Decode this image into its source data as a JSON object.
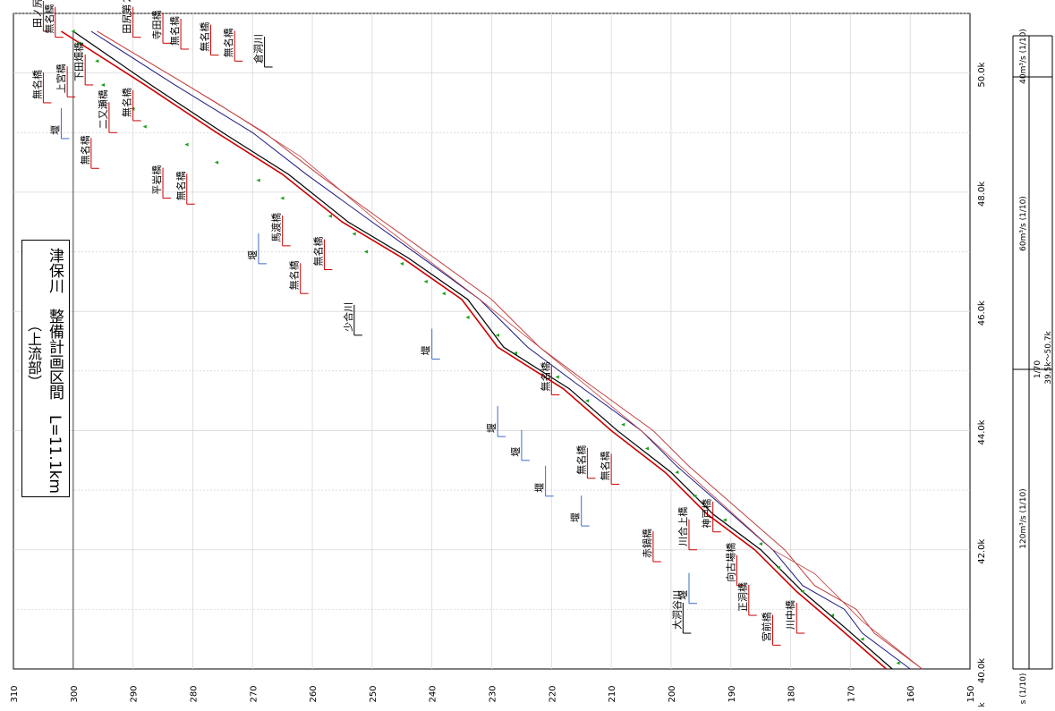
{
  "title_box": {
    "line1": "津保川　整備計画区間　L=11.1km",
    "line2": "（上流部）"
  },
  "axes": {
    "elevation_ticks": [
      "310",
      "300",
      "290",
      "280",
      "270",
      "260",
      "250",
      "240",
      "230",
      "220",
      "210",
      "200",
      "190",
      "180",
      "170",
      "160",
      "150"
    ],
    "distance_ticks": [
      "40.0k",
      "42.0k",
      "44.0k",
      "46.0k",
      "48.0k",
      "50.0k"
    ],
    "distance_unit_label": "k"
  },
  "flow_table": {
    "q1": "40m³/s (1/10)",
    "q2": "60m³/s (1/10)",
    "q3": "120m³/s (1/10)",
    "q4": "s (1/10)",
    "slope": "1/70",
    "range": "39.5k～50.7k"
  },
  "colors": {
    "plan_line": "#cc0000",
    "design_line": "#000000",
    "bed_line": "#1a1a80",
    "bank_line": "#c04040",
    "ground_points": "#1aa01a",
    "bridge_marker": "#cc0000",
    "weir_marker": "#3a6fc0",
    "tributary_marker": "#000000",
    "grid": "#d8d8d8"
  },
  "chart_data": {
    "type": "line",
    "x_axis": "distance (k)",
    "y_axis": "elevation",
    "xlim": [
      40.0,
      51.0
    ],
    "ylim": [
      150,
      310
    ],
    "grid": true,
    "series": [
      {
        "x": [
          40.0,
          40.7,
          41.3,
          42.0,
          42.6,
          43.3,
          44.0,
          44.7,
          45.4,
          46.2,
          46.9,
          47.5,
          48.3,
          49.0,
          49.8,
          50.7
        ],
        "y": [
          164,
          172,
          179,
          186,
          194,
          201,
          210,
          218,
          229,
          235,
          245,
          255,
          265,
          276,
          288,
          302
        ]
      },
      {
        "x": [
          40.0,
          40.7,
          41.3,
          42.0,
          42.6,
          43.3,
          44.0,
          44.7,
          45.4,
          46.2,
          46.9,
          47.5,
          48.3,
          49.0,
          49.8,
          50.7
        ],
        "y": [
          163,
          171,
          178,
          185,
          193,
          200,
          209,
          217,
          228,
          234,
          244,
          254,
          264,
          275,
          287,
          300
        ]
      },
      {
        "x": [
          40.0,
          40.6,
          41.0,
          41.4,
          42.0,
          42.7,
          43.4,
          44.0,
          44.8,
          45.4,
          46.2,
          47.0,
          47.5,
          48.3,
          49.0,
          49.8,
          50.7
        ],
        "y": [
          160,
          168,
          171,
          178,
          183,
          191,
          199,
          205,
          216,
          224,
          232,
          243,
          250,
          261,
          270,
          283,
          297
        ]
      },
      {
        "x": [
          40.0,
          40.6,
          41.0,
          41.4,
          42.0,
          42.7,
          43.4,
          44.0,
          44.8,
          45.4,
          46.2,
          47.0,
          47.5,
          48.3,
          49.0,
          49.8,
          50.7
        ],
        "y": [
          158,
          166,
          169,
          176,
          181,
          189,
          197,
          203,
          214,
          222,
          230,
          241,
          248,
          259,
          268,
          281,
          296
        ]
      },
      {
        "x": [
          40.0,
          40.8,
          41.6,
          42.0,
          43.0,
          44.0,
          45.4,
          46.2,
          47.5,
          48.6,
          49.5,
          50.7
        ],
        "y": [
          158,
          168,
          176,
          183,
          194,
          205,
          222,
          232,
          249,
          262,
          276,
          296
        ]
      }
    ],
    "ground_points": [
      {
        "x": 40.1,
        "y": 162
      },
      {
        "x": 40.5,
        "y": 168
      },
      {
        "x": 40.9,
        "y": 173
      },
      {
        "x": 41.3,
        "y": 178
      },
      {
        "x": 41.7,
        "y": 182
      },
      {
        "x": 42.1,
        "y": 185
      },
      {
        "x": 42.5,
        "y": 191
      },
      {
        "x": 42.9,
        "y": 196
      },
      {
        "x": 43.3,
        "y": 199
      },
      {
        "x": 43.7,
        "y": 204
      },
      {
        "x": 44.1,
        "y": 208
      },
      {
        "x": 44.5,
        "y": 214
      },
      {
        "x": 44.9,
        "y": 219
      },
      {
        "x": 45.3,
        "y": 226
      },
      {
        "x": 45.6,
        "y": 229
      },
      {
        "x": 45.9,
        "y": 234
      },
      {
        "x": 46.3,
        "y": 238
      },
      {
        "x": 46.5,
        "y": 241
      },
      {
        "x": 46.8,
        "y": 245
      },
      {
        "x": 47.0,
        "y": 251
      },
      {
        "x": 47.3,
        "y": 253
      },
      {
        "x": 47.6,
        "y": 257
      },
      {
        "x": 47.9,
        "y": 265
      },
      {
        "x": 48.2,
        "y": 269
      },
      {
        "x": 48.5,
        "y": 276
      },
      {
        "x": 48.8,
        "y": 281
      },
      {
        "x": 49.1,
        "y": 288
      },
      {
        "x": 49.4,
        "y": 290
      },
      {
        "x": 49.8,
        "y": 295
      },
      {
        "x": 50.2,
        "y": 296
      },
      {
        "x": 50.5,
        "y": 299
      },
      {
        "x": 50.7,
        "y": 300
      }
    ],
    "annotations": [
      {
        "label": "田ノ尻橋",
        "kind": "bridge",
        "x": 50.7,
        "y": 305
      },
      {
        "label": "無名橋",
        "kind": "bridge",
        "x": 50.6,
        "y": 303
      },
      {
        "label": "田尻第２橋",
        "kind": "bridge",
        "x": 50.6,
        "y": 290
      },
      {
        "label": "寺田橋",
        "kind": "bridge",
        "x": 50.5,
        "y": 285
      },
      {
        "label": "無名橋",
        "kind": "bridge",
        "x": 50.4,
        "y": 282
      },
      {
        "label": "無名橋",
        "kind": "bridge",
        "x": 50.3,
        "y": 277
      },
      {
        "label": "無名橋",
        "kind": "bridge",
        "x": 50.2,
        "y": 273
      },
      {
        "label": "倉洞川",
        "kind": "tributary",
        "x": 50.1,
        "y": 268
      },
      {
        "label": "下田畑橋",
        "kind": "bridge",
        "x": 49.8,
        "y": 298
      },
      {
        "label": "上宮橋",
        "kind": "bridge",
        "x": 49.6,
        "y": 301
      },
      {
        "label": "無名橋",
        "kind": "bridge",
        "x": 49.5,
        "y": 305
      },
      {
        "label": "無名橋",
        "kind": "bridge",
        "x": 49.2,
        "y": 290
      },
      {
        "label": "二又瀬橋",
        "kind": "bridge",
        "x": 49.0,
        "y": 294
      },
      {
        "label": "堰",
        "kind": "weir",
        "x": 48.9,
        "y": 302
      },
      {
        "label": "無名橋",
        "kind": "bridge",
        "x": 48.4,
        "y": 297
      },
      {
        "label": "平岩橋",
        "kind": "bridge",
        "x": 47.9,
        "y": 285
      },
      {
        "label": "無名橋",
        "kind": "bridge",
        "x": 47.8,
        "y": 281
      },
      {
        "label": "馬渡橋",
        "kind": "bridge",
        "x": 47.1,
        "y": 265
      },
      {
        "label": "堰",
        "kind": "weir",
        "x": 46.8,
        "y": 269
      },
      {
        "label": "無名橋",
        "kind": "bridge",
        "x": 46.7,
        "y": 258
      },
      {
        "label": "無名橋",
        "kind": "bridge",
        "x": 46.3,
        "y": 262
      },
      {
        "label": "少合川",
        "kind": "tributary",
        "x": 45.6,
        "y": 253
      },
      {
        "label": "堰",
        "kind": "weir",
        "x": 45.2,
        "y": 240
      },
      {
        "label": "無名橋",
        "kind": "bridge",
        "x": 44.6,
        "y": 220
      },
      {
        "label": "堰",
        "kind": "weir",
        "x": 43.9,
        "y": 229
      },
      {
        "label": "堰",
        "kind": "weir",
        "x": 43.5,
        "y": 225
      },
      {
        "label": "無名橋",
        "kind": "bridge",
        "x": 43.2,
        "y": 214
      },
      {
        "label": "無名橋",
        "kind": "bridge",
        "x": 43.1,
        "y": 210
      },
      {
        "label": "堰",
        "kind": "weir",
        "x": 42.9,
        "y": 221
      },
      {
        "label": "堰",
        "kind": "weir",
        "x": 42.4,
        "y": 215
      },
      {
        "label": "神戸橋",
        "kind": "bridge",
        "x": 42.3,
        "y": 193
      },
      {
        "label": "川合上橋",
        "kind": "bridge",
        "x": 42.0,
        "y": 197
      },
      {
        "label": "赤鍋橋",
        "kind": "bridge",
        "x": 41.8,
        "y": 203
      },
      {
        "label": "向古場橋",
        "kind": "bridge",
        "x": 41.4,
        "y": 189
      },
      {
        "label": "堰",
        "kind": "weir",
        "x": 41.1,
        "y": 197
      },
      {
        "label": "正洞橋",
        "kind": "bridge",
        "x": 40.9,
        "y": 187
      },
      {
        "label": "大洞谷川",
        "kind": "tributary",
        "x": 40.6,
        "y": 198
      },
      {
        "label": "川中橋",
        "kind": "bridge",
        "x": 40.6,
        "y": 179
      },
      {
        "label": "宮前橋",
        "kind": "bridge",
        "x": 40.4,
        "y": 183
      }
    ]
  }
}
